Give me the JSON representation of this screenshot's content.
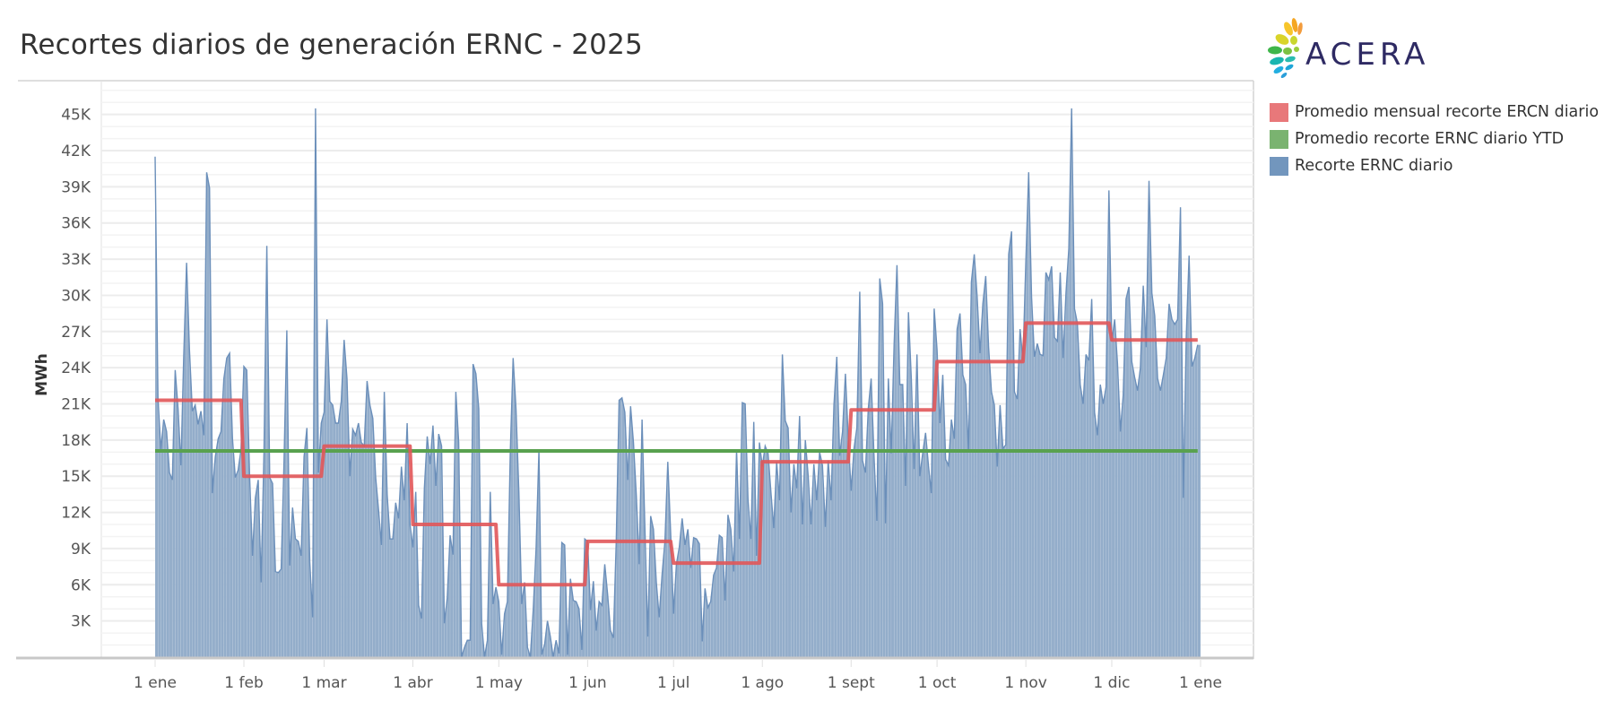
{
  "title": "Recortes diarios de generación ERNC - 2025",
  "logo": {
    "text": "ACERA",
    "text_color": "#2e2a63"
  },
  "legend": [
    {
      "label": "Promedio mensual recorte ERCN diario",
      "color": "#e8787a"
    },
    {
      "label": "Promedio recorte ERNC diario YTD",
      "color": "#7ab370"
    },
    {
      "label": "Recorte ERNC diario",
      "color": "#7296bd"
    }
  ],
  "chart_data": {
    "type": "area",
    "title": "Recortes diarios de generación ERNC - 2025",
    "ylabel": "MWh",
    "xlabel": "",
    "ylim": [
      0,
      47800
    ],
    "yticks": [
      3000,
      6000,
      9000,
      12000,
      15000,
      18000,
      21000,
      24000,
      27000,
      30000,
      33000,
      36000,
      39000,
      42000,
      45000
    ],
    "ytick_labels": [
      "3K",
      "6K",
      "9K",
      "12K",
      "15K",
      "18K",
      "21K",
      "24K",
      "27K",
      "30K",
      "33K",
      "36K",
      "39K",
      "42K",
      "45K"
    ],
    "xtick_labels": [
      "1 ene",
      "1 feb",
      "1 mar",
      "1 abr",
      "1 may",
      "1 jun",
      "1 jul",
      "1 ago",
      "1 sept",
      "1 oct",
      "1 nov",
      "1 dic",
      "1 ene"
    ],
    "grid": true,
    "legend_position": "right",
    "colors": {
      "daily_fill": "#93adca",
      "daily_line": "#6b8fba",
      "monthly": "#e15759",
      "ytd": "#59a14f"
    },
    "series": [
      {
        "name": "Recorte ERNC diario",
        "type": "area",
        "start_date": "2025-01-01",
        "frequency": "daily",
        "values": [
          41500,
          21500,
          17200,
          19700,
          18700,
          15300,
          14700,
          23800,
          20600,
          15900,
          24900,
          32700,
          25500,
          20400,
          20900,
          19300,
          20400,
          18400,
          40200,
          38900,
          13600,
          16600,
          18100,
          18700,
          23100,
          24800,
          25200,
          18100,
          14900,
          15500,
          17200,
          24100,
          23800,
          15000,
          8400,
          13200,
          14700,
          6200,
          16900,
          34100,
          14900,
          14400,
          7100,
          7000,
          7300,
          16300,
          27100,
          7600,
          12400,
          9800,
          9600,
          8400,
          16600,
          19000,
          7900,
          3300,
          45500,
          15300,
          19400,
          20300,
          28000,
          21200,
          20900,
          19400,
          19400,
          21200,
          26300,
          23100,
          15000,
          18900,
          18400,
          19400,
          17800,
          17500,
          22900,
          20900,
          19800,
          14900,
          12200,
          9300,
          22000,
          13500,
          9800,
          9800,
          12800,
          11500,
          15800,
          13000,
          19400,
          11000,
          9100,
          13700,
          4300,
          3200,
          14000,
          18300,
          16000,
          19200,
          14200,
          18500,
          17500,
          2800,
          4900,
          10100,
          8500,
          22000,
          17800,
          0,
          800,
          1400,
          1400,
          24300,
          23500,
          20600,
          2800,
          0,
          1400,
          13700,
          4400,
          5800,
          4600,
          200,
          3600,
          4600,
          16900,
          24800,
          20600,
          13700,
          4400,
          6200,
          800,
          0,
          3900,
          9000,
          17200,
          200,
          1100,
          3000,
          1700,
          0,
          1400,
          300,
          9500,
          9300,
          200,
          6500,
          4700,
          4600,
          4000,
          600,
          9800,
          9600,
          3900,
          6300,
          2200,
          4600,
          4300,
          7700,
          5200,
          2200,
          1600,
          9600,
          21300,
          21500,
          20300,
          14700,
          20800,
          17800,
          13400,
          7700,
          19700,
          10600,
          1700,
          11700,
          10600,
          6200,
          3300,
          6800,
          9600,
          16200,
          10300,
          3600,
          7700,
          9100,
          11500,
          9300,
          10600,
          7400,
          9900,
          9800,
          9400,
          1300,
          5700,
          4100,
          4600,
          6800,
          7400,
          10100,
          9900,
          4700,
          11800,
          10600,
          7100,
          17200,
          9800,
          21100,
          21000,
          13000,
          9800,
          19500,
          8400,
          17800,
          15800,
          17500,
          16900,
          13700,
          10700,
          16200,
          13000,
          25100,
          19600,
          19000,
          12000,
          16000,
          14000,
          20000,
          11000,
          18000,
          15000,
          11000,
          16000,
          13000,
          17000,
          15900,
          10800,
          16300,
          13000,
          20900,
          24900,
          16700,
          18700,
          23500,
          18100,
          13800,
          17300,
          19000,
          30300,
          16300,
          15300,
          20600,
          23100,
          16700,
          11300,
          31400,
          29300,
          11100,
          23100,
          16900,
          25900,
          32500,
          22600,
          22600,
          14200,
          28600,
          23100,
          15600,
          25100,
          15000,
          16900,
          18600,
          15900,
          13600,
          28900,
          25500,
          19400,
          23400,
          16400,
          15900,
          19700,
          18100,
          27200,
          28500,
          23400,
          22600,
          17000,
          31100,
          33400,
          29900,
          25200,
          29300,
          31600,
          25700,
          22000,
          20900,
          15800,
          20900,
          17300,
          17600,
          33400,
          35300,
          22000,
          21400,
          27200,
          24600,
          32700,
          40200,
          29900,
          24900,
          26000,
          25100,
          25000,
          31900,
          31300,
          32400,
          26500,
          26200,
          31900,
          24800,
          30200,
          33900,
          45500,
          28900,
          27700,
          22600,
          21000,
          25100,
          24600,
          29700,
          20300,
          18400,
          22600,
          21000,
          22400,
          38700,
          26200,
          28000,
          24300,
          18700,
          21700,
          29700,
          30700,
          24500,
          23200,
          22100,
          24000,
          30800,
          25700,
          39500,
          30200,
          28300,
          23100,
          22100,
          23400,
          24800,
          29300,
          28000,
          27600,
          28000,
          37300,
          13200,
          26500,
          33300,
          24100,
          24800,
          25900
        ]
      },
      {
        "name": "Promedio mensual recorte ERCN diario",
        "type": "step",
        "months": [
          "ene",
          "feb",
          "mar",
          "abr",
          "may",
          "jun",
          "jul",
          "ago",
          "sept",
          "oct",
          "nov",
          "dic"
        ],
        "values": [
          21300,
          15000,
          17500,
          11000,
          6000,
          9600,
          7800,
          16200,
          20500,
          24500,
          27700,
          26300
        ]
      },
      {
        "name": "Promedio recorte ERNC diario YTD",
        "type": "constant",
        "value": 17100
      }
    ]
  }
}
